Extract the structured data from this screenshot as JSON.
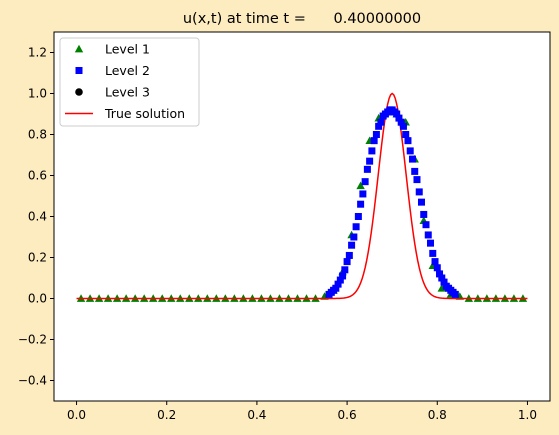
{
  "chart_data": {
    "type": "scatter",
    "title": "u(x,t) at time t =      0.40000000",
    "xlabel": "",
    "ylabel": "",
    "xlim": [
      -0.05,
      1.05
    ],
    "ylim": [
      -0.5,
      1.3
    ],
    "grid": false,
    "legend_position": "top-left",
    "xticks": [
      0.0,
      0.2,
      0.4,
      0.6,
      0.8,
      1.0
    ],
    "xtick_labels": [
      "0.0",
      "0.2",
      "0.4",
      "0.6",
      "0.8",
      "1.0"
    ],
    "yticks": [
      -0.4,
      -0.2,
      0.0,
      0.2,
      0.4,
      0.6,
      0.8,
      1.0,
      1.2
    ],
    "ytick_labels": [
      "−0.4",
      "−0.2",
      "0.0",
      "0.2",
      "0.4",
      "0.6",
      "0.8",
      "1.0",
      "1.2"
    ],
    "series": [
      {
        "name": "Level 1",
        "marker": "triangle",
        "color": "#008000",
        "x": [
          0.01,
          0.03,
          0.05,
          0.07,
          0.09,
          0.11,
          0.13,
          0.15,
          0.17,
          0.19,
          0.21,
          0.23,
          0.25,
          0.27,
          0.29,
          0.31,
          0.33,
          0.35,
          0.37,
          0.39,
          0.41,
          0.43,
          0.45,
          0.47,
          0.49,
          0.51,
          0.53,
          0.55,
          0.57,
          0.59,
          0.61,
          0.63,
          0.65,
          0.67,
          0.69,
          0.71,
          0.73,
          0.75,
          0.77,
          0.79,
          0.81,
          0.83,
          0.85,
          0.87,
          0.89,
          0.91,
          0.93,
          0.95,
          0.97,
          0.99
        ],
        "y": [
          0,
          0,
          0,
          0,
          0,
          0,
          0,
          0,
          0,
          0,
          0,
          0,
          0,
          0,
          0,
          0,
          0,
          0,
          0,
          0,
          0,
          0,
          0,
          0,
          0,
          0,
          0,
          0.01,
          0.04,
          0.13,
          0.31,
          0.55,
          0.77,
          0.88,
          0.91,
          0.9,
          0.86,
          0.68,
          0.38,
          0.16,
          0.05,
          0.02,
          0.01,
          0,
          0,
          0,
          0,
          0,
          0,
          0
        ]
      },
      {
        "name": "Level 2",
        "marker": "square",
        "color": "#0000ff",
        "x": [
          0.56,
          0.565,
          0.57,
          0.575,
          0.58,
          0.585,
          0.59,
          0.595,
          0.6,
          0.605,
          0.61,
          0.615,
          0.62,
          0.625,
          0.63,
          0.635,
          0.64,
          0.645,
          0.65,
          0.655,
          0.66,
          0.665,
          0.67,
          0.675,
          0.68,
          0.685,
          0.69,
          0.695,
          0.7,
          0.705,
          0.71,
          0.715,
          0.72,
          0.725,
          0.73,
          0.735,
          0.74,
          0.745,
          0.75,
          0.755,
          0.76,
          0.765,
          0.77,
          0.775,
          0.78,
          0.785,
          0.79,
          0.795,
          0.8,
          0.805,
          0.81,
          0.815,
          0.82,
          0.825,
          0.83,
          0.835,
          0.84
        ],
        "y": [
          0.02,
          0.03,
          0.04,
          0.05,
          0.07,
          0.09,
          0.11,
          0.14,
          0.18,
          0.21,
          0.26,
          0.3,
          0.35,
          0.4,
          0.46,
          0.51,
          0.57,
          0.63,
          0.67,
          0.72,
          0.77,
          0.8,
          0.84,
          0.86,
          0.89,
          0.9,
          0.91,
          0.92,
          0.92,
          0.91,
          0.9,
          0.88,
          0.86,
          0.84,
          0.8,
          0.77,
          0.72,
          0.68,
          0.62,
          0.58,
          0.52,
          0.47,
          0.41,
          0.36,
          0.31,
          0.27,
          0.22,
          0.18,
          0.15,
          0.12,
          0.1,
          0.08,
          0.06,
          0.05,
          0.04,
          0.03,
          0.02
        ]
      },
      {
        "name": "Level 3",
        "marker": "circle",
        "color": "#000000",
        "x": [],
        "y": []
      },
      {
        "name": "True solution",
        "marker": "line",
        "color": "#ff0000",
        "function": "exp(-(x-0.7)^2/0.0019)",
        "x_range": [
          0.0,
          1.0
        ],
        "peak": {
          "x": 0.7,
          "y": 1.0
        }
      }
    ]
  }
}
